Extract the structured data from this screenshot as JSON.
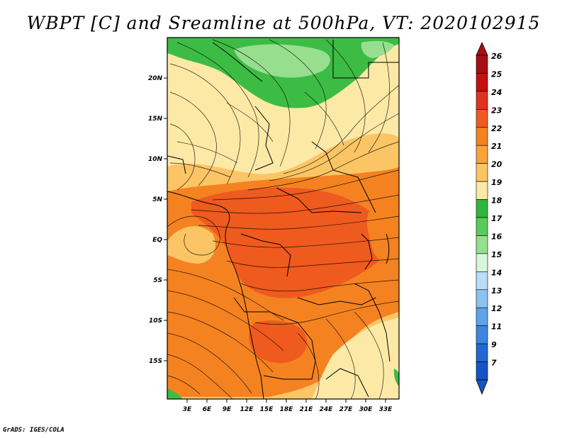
{
  "title": "WBPT [C] and Sreamline at 500hPa, VT: 2020102915",
  "credit": "GrADS: IGES/COLA",
  "lat_ticks": [
    "20N",
    "15N",
    "10N",
    "5N",
    "EQ",
    "5S",
    "10S",
    "15S"
  ],
  "lon_ticks": [
    "3E",
    "6E",
    "9E",
    "12E",
    "15E",
    "18E",
    "21E",
    "24E",
    "27E",
    "30E",
    "33E"
  ],
  "legend": {
    "labels": [
      "26",
      "25",
      "24",
      "23",
      "22",
      "21",
      "20",
      "19",
      "18",
      "17",
      "16",
      "15",
      "14",
      "13",
      "12",
      "11",
      "9",
      "7"
    ],
    "colors": [
      "#a50f15",
      "#c4100e",
      "#e0331f",
      "#ef5a1f",
      "#f58220",
      "#f9a43a",
      "#fbc566",
      "#fde9a6",
      "#2fb63c",
      "#59cb5d",
      "#94e08d",
      "#d8f7da",
      "#b9dcf7",
      "#8cc1f0",
      "#5ea4e8",
      "#3b86e0",
      "#2268d2",
      "#1554c6"
    ],
    "top_arrow_color": "#a50f15",
    "bottom_arrow_color": "#1554c6"
  },
  "colors": {
    "green": "#3cbc45",
    "light_green": "#97df8f",
    "pale_yellow": "#fde9a6",
    "light_orange": "#fbc566",
    "orange": "#f58220",
    "deep_orange": "#ef5a1f",
    "red": "#e0331f"
  }
}
